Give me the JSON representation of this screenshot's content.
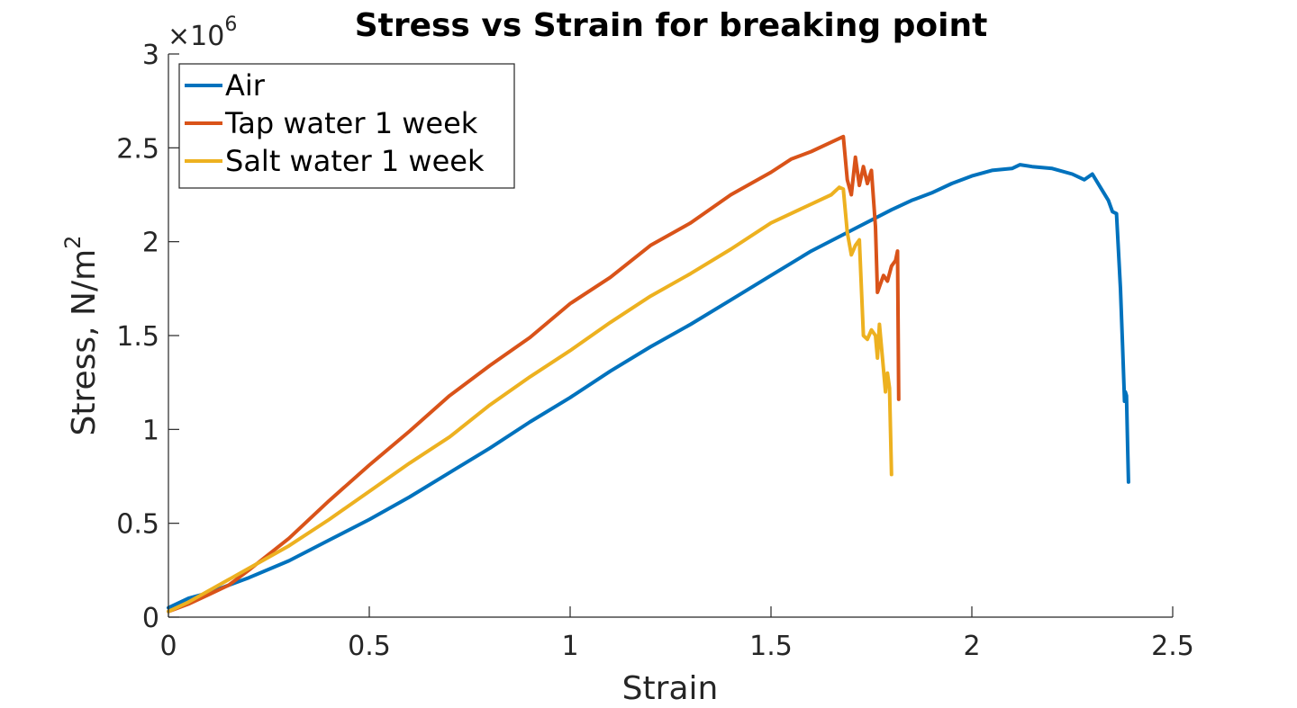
{
  "chart_data": {
    "type": "line",
    "title": "Stress vs Strain for breaking point",
    "xlabel": "Strain",
    "ylabel": "Stress, N/m",
    "ylabel_superscript": "2",
    "y_exponent_prefix": "×10",
    "y_exponent_power": "6",
    "xlim": [
      0,
      2.5
    ],
    "ylim": [
      0,
      3000000
    ],
    "xticks": [
      0,
      0.5,
      1,
      1.5,
      2,
      2.5
    ],
    "yticks": [
      0,
      500000,
      1000000,
      1500000,
      2000000,
      2500000,
      3000000
    ],
    "xtick_labels": [
      "0",
      "0.5",
      "1",
      "1.5",
      "2",
      "2.5"
    ],
    "ytick_labels": [
      "0",
      "0.5",
      "1",
      "1.5",
      "2",
      "2.5",
      "3"
    ],
    "grid": false,
    "legend_position": "top-left",
    "series": [
      {
        "name": "Air",
        "color": "#0072BD",
        "x": [
          0,
          0.05,
          0.1,
          0.15,
          0.2,
          0.3,
          0.4,
          0.5,
          0.6,
          0.7,
          0.8,
          0.9,
          1.0,
          1.1,
          1.2,
          1.3,
          1.4,
          1.5,
          1.6,
          1.7,
          1.8,
          1.85,
          1.9,
          1.95,
          2.0,
          2.05,
          2.1,
          2.12,
          2.15,
          2.2,
          2.25,
          2.28,
          2.3,
          2.32,
          2.34,
          2.35,
          2.36,
          2.37,
          2.375,
          2.38,
          2.382,
          2.385,
          2.388,
          2.39
        ],
        "y": [
          50000,
          100000,
          130000,
          170000,
          210000,
          300000,
          410000,
          520000,
          640000,
          770000,
          900000,
          1040000,
          1170000,
          1310000,
          1440000,
          1560000,
          1690000,
          1820000,
          1950000,
          2060000,
          2170000,
          2220000,
          2260000,
          2310000,
          2350000,
          2380000,
          2390000,
          2410000,
          2400000,
          2390000,
          2360000,
          2330000,
          2360000,
          2290000,
          2220000,
          2160000,
          2150000,
          1750000,
          1450000,
          1150000,
          1200000,
          1180000,
          900000,
          720000
        ]
      },
      {
        "name": "Tap water 1 week",
        "color": "#D95319",
        "x": [
          0,
          0.05,
          0.1,
          0.15,
          0.2,
          0.3,
          0.4,
          0.5,
          0.6,
          0.7,
          0.8,
          0.9,
          1.0,
          1.1,
          1.2,
          1.3,
          1.4,
          1.5,
          1.55,
          1.6,
          1.65,
          1.68,
          1.69,
          1.7,
          1.71,
          1.72,
          1.73,
          1.74,
          1.75,
          1.76,
          1.765,
          1.77,
          1.78,
          1.79,
          1.8,
          1.81,
          1.815,
          1.818
        ],
        "y": [
          30000,
          70000,
          120000,
          170000,
          250000,
          420000,
          620000,
          810000,
          990000,
          1180000,
          1340000,
          1490000,
          1670000,
          1810000,
          1980000,
          2100000,
          2250000,
          2370000,
          2440000,
          2480000,
          2530000,
          2560000,
          2330000,
          2250000,
          2450000,
          2300000,
          2400000,
          2310000,
          2380000,
          2080000,
          1730000,
          1760000,
          1820000,
          1790000,
          1870000,
          1900000,
          1950000,
          1160000
        ]
      },
      {
        "name": "Salt water 1 week",
        "color": "#EDB120",
        "x": [
          0,
          0.05,
          0.1,
          0.15,
          0.2,
          0.3,
          0.4,
          0.5,
          0.6,
          0.7,
          0.8,
          0.9,
          1.0,
          1.1,
          1.2,
          1.3,
          1.4,
          1.5,
          1.6,
          1.65,
          1.67,
          1.68,
          1.69,
          1.7,
          1.71,
          1.72,
          1.73,
          1.74,
          1.75,
          1.76,
          1.765,
          1.77,
          1.78,
          1.785,
          1.79,
          1.795,
          1.8
        ],
        "y": [
          30000,
          80000,
          140000,
          200000,
          260000,
          380000,
          520000,
          670000,
          820000,
          960000,
          1130000,
          1280000,
          1420000,
          1570000,
          1710000,
          1830000,
          1960000,
          2100000,
          2200000,
          2250000,
          2290000,
          2280000,
          2050000,
          1930000,
          1980000,
          2010000,
          1500000,
          1480000,
          1530000,
          1500000,
          1380000,
          1560000,
          1320000,
          1200000,
          1300000,
          1220000,
          760000
        ]
      }
    ]
  }
}
